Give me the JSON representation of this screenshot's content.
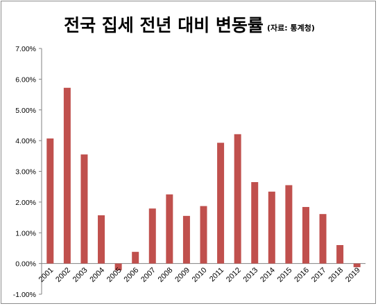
{
  "chart_data": {
    "type": "bar",
    "title": "전국 집세 전년 대비 변동률",
    "subtitle": "(자료: 통계청)",
    "categories": [
      "2001",
      "2002",
      "2003",
      "2004",
      "2005",
      "2006",
      "2007",
      "2008",
      "2009",
      "2010",
      "2011",
      "2012",
      "2013",
      "2014",
      "2015",
      "2016",
      "2017",
      "2018",
      "2019"
    ],
    "values": [
      4.07,
      5.72,
      3.55,
      1.57,
      -0.22,
      0.38,
      1.79,
      2.25,
      1.55,
      1.87,
      3.93,
      4.21,
      2.65,
      2.34,
      2.55,
      1.84,
      1.61,
      0.6,
      -0.12
    ],
    "ylim": [
      -0.01,
      0.07
    ],
    "yticks": [
      "7.00%",
      "6.00%",
      "5.00%",
      "4.00%",
      "3.00%",
      "2.00%",
      "1.00%",
      "0.00%",
      "-1.00%"
    ],
    "bar_color": "#c0504d",
    "grid": false,
    "legend": "none"
  }
}
